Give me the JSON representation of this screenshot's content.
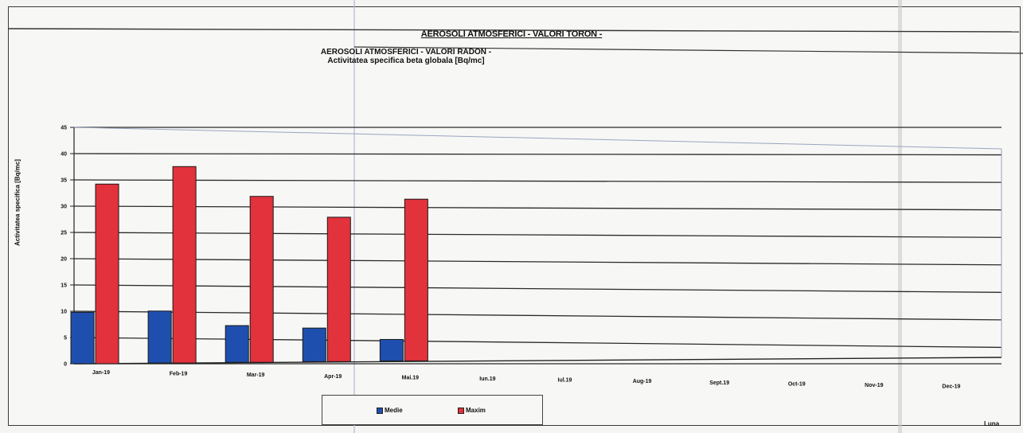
{
  "chart_data": {
    "type": "bar",
    "title": "AEROSOLI ATMOSFERICI - VALORI TORON -",
    "subtitle_line1": "AEROSOLI ATMOSFERICI - VALORI RADON -",
    "subtitle_line2": "Activitatea specifica beta globala [Bq/mc]",
    "ylabel": "Activitatea specifica [Bq/mc]",
    "xlabel": "Luna",
    "categories": [
      "Jan-19",
      "Feb-19",
      "Mar-19",
      "Apr-19",
      "Mai.19",
      "Iun.19",
      "Iul.19",
      "Aug-19",
      "Sept.19",
      "Oct-19",
      "Nov-19",
      "Dec-19"
    ],
    "ylim": [
      0,
      45
    ],
    "yticks": [
      "0",
      "5",
      "10",
      "15",
      "20",
      "25",
      "30",
      "35",
      "40",
      "45"
    ],
    "grid": true,
    "legend_position": "bottom",
    "series": [
      {
        "name": "Medie",
        "color": "#1f4fae",
        "values": [
          9.8,
          10.1,
          7.4,
          7.0,
          4.9,
          null,
          null,
          null,
          null,
          null,
          null,
          null
        ]
      },
      {
        "name": "Maxim",
        "color": "#e2323c",
        "values": [
          34.2,
          37.6,
          32.0,
          28.1,
          31.6,
          null,
          null,
          null,
          null,
          null,
          null,
          null
        ]
      }
    ]
  }
}
